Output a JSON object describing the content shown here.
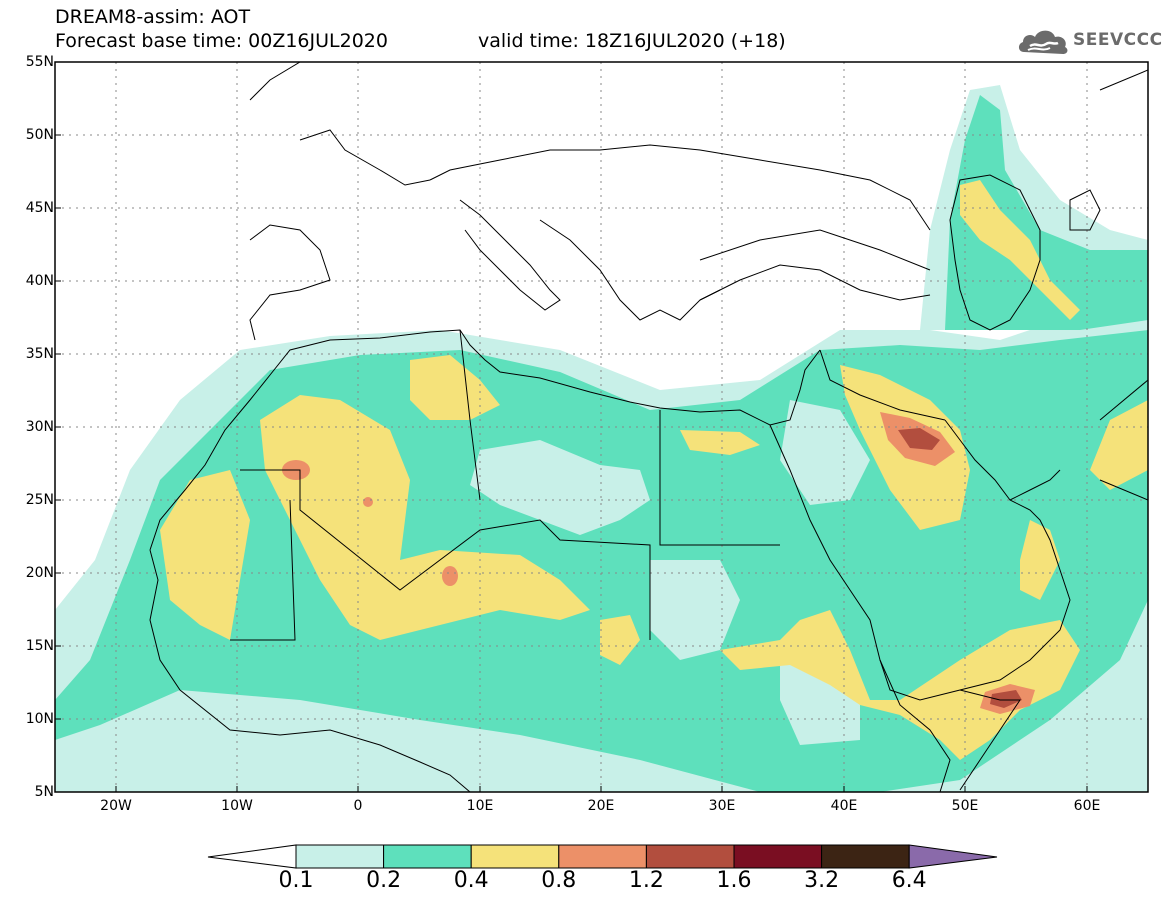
{
  "title": {
    "line1": "DREAM8-assim: AOT",
    "line2": "Forecast base time: 00Z16JUL2020",
    "valid": "valid time: 18Z16JUL2020 (+18)"
  },
  "logo": {
    "text": "SEEVCCC",
    "icon": "cloud-logo-icon"
  },
  "map": {
    "lon_range": [
      -25,
      65
    ],
    "lat_range": [
      5,
      55
    ],
    "lat_labels": [
      "55N",
      "50N",
      "45N",
      "40N",
      "35N",
      "30N",
      "25N",
      "20N",
      "15N",
      "10N",
      "5N"
    ],
    "lon_labels": [
      "20W",
      "10W",
      "0",
      "10E",
      "20E",
      "30E",
      "40E",
      "50E",
      "60E"
    ],
    "grid": true,
    "land_color": "#ffffff",
    "coast_color": "#000000"
  },
  "legend": {
    "levels": [
      "0.1",
      "0.2",
      "0.4",
      "0.8",
      "1.2",
      "1.6",
      "3.2",
      "6.4"
    ],
    "colors": [
      "#ffffff",
      "#c8f0e8",
      "#5ee0bc",
      "#f5e27a",
      "#ec9068",
      "#b24e3e",
      "#7a0e22",
      "#3c2414",
      "#8a6aaa"
    ]
  }
}
